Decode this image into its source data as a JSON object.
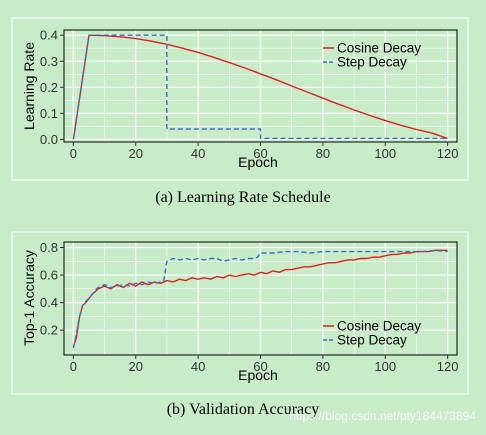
{
  "colors": {
    "cosine": "#e02020",
    "step": "#3a6fc4",
    "grid": "#ffffff",
    "panel": "#c8ecc8"
  },
  "chart_data": [
    {
      "type": "line",
      "caption": "(a) Learning Rate Schedule",
      "xlabel": "Epoch",
      "ylabel": "Learning Rate",
      "xlim": [
        -3,
        123
      ],
      "ylim": [
        -0.01,
        0.42
      ],
      "xticks": [
        0,
        20,
        40,
        60,
        80,
        100,
        120
      ],
      "xtick_labels": [
        "0",
        "20",
        "40",
        "60",
        "80",
        "100",
        "120"
      ],
      "yticks": [
        0.0,
        0.1,
        0.2,
        0.3,
        0.4
      ],
      "ytick_labels": [
        "0.0",
        "0.1",
        "0.2",
        "0.3",
        "0.4"
      ],
      "legend_position": "top-right",
      "grid": true,
      "series": [
        {
          "name": "Cosine Decay",
          "style": "solid",
          "x": [
            0,
            5,
            10,
            15,
            20,
            25,
            30,
            35,
            40,
            45,
            50,
            55,
            60,
            65,
            70,
            75,
            80,
            85,
            90,
            95,
            100,
            105,
            110,
            115,
            120
          ],
          "y": [
            0.0,
            0.4,
            0.398,
            0.394,
            0.387,
            0.377,
            0.365,
            0.35,
            0.334,
            0.315,
            0.295,
            0.274,
            0.252,
            0.229,
            0.205,
            0.182,
            0.158,
            0.135,
            0.113,
            0.092,
            0.072,
            0.054,
            0.038,
            0.024,
            0.004
          ]
        },
        {
          "name": "Step Decay",
          "style": "dashed",
          "x": [
            0,
            5,
            30,
            30,
            60,
            60,
            120
          ],
          "y": [
            0.0,
            0.4,
            0.4,
            0.04,
            0.04,
            0.004,
            0.004
          ]
        }
      ]
    },
    {
      "type": "line",
      "caption": "(b) Validation Accuracy",
      "xlabel": "Epoch",
      "ylabel": "Top-1 Accuracy",
      "xlim": [
        -3,
        123
      ],
      "ylim": [
        0.02,
        0.84
      ],
      "xticks": [
        0,
        20,
        40,
        60,
        80,
        100,
        120
      ],
      "xtick_labels": [
        "0",
        "20",
        "40",
        "60",
        "80",
        "100",
        "120"
      ],
      "yticks": [
        0.2,
        0.4,
        0.6,
        0.8
      ],
      "ytick_labels": [
        "0.2",
        "0.4",
        "0.6",
        "0.8"
      ],
      "legend_position": "bottom-right",
      "grid": true,
      "series": [
        {
          "name": "Cosine Decay",
          "style": "solid",
          "x": [
            0,
            1,
            2,
            3,
            4,
            5,
            6,
            7,
            8,
            9,
            10,
            12,
            14,
            16,
            18,
            20,
            22,
            24,
            26,
            28,
            30,
            32,
            34,
            36,
            38,
            40,
            42,
            44,
            46,
            48,
            50,
            52,
            54,
            56,
            58,
            60,
            62,
            64,
            66,
            68,
            70,
            72,
            74,
            76,
            78,
            80,
            82,
            84,
            86,
            88,
            90,
            92,
            94,
            96,
            98,
            100,
            102,
            104,
            106,
            108,
            110,
            112,
            114,
            116,
            118,
            120
          ],
          "y": [
            0.08,
            0.15,
            0.3,
            0.38,
            0.4,
            0.43,
            0.46,
            0.48,
            0.5,
            0.51,
            0.52,
            0.5,
            0.53,
            0.51,
            0.54,
            0.52,
            0.55,
            0.53,
            0.55,
            0.54,
            0.56,
            0.55,
            0.57,
            0.56,
            0.58,
            0.57,
            0.58,
            0.57,
            0.59,
            0.58,
            0.6,
            0.59,
            0.6,
            0.61,
            0.6,
            0.62,
            0.61,
            0.63,
            0.62,
            0.64,
            0.64,
            0.65,
            0.66,
            0.66,
            0.67,
            0.68,
            0.69,
            0.69,
            0.7,
            0.71,
            0.71,
            0.72,
            0.72,
            0.73,
            0.73,
            0.74,
            0.75,
            0.75,
            0.76,
            0.76,
            0.77,
            0.77,
            0.77,
            0.78,
            0.78,
            0.78
          ]
        },
        {
          "name": "Step Decay",
          "style": "dashed",
          "x": [
            0,
            1,
            2,
            3,
            4,
            5,
            6,
            7,
            8,
            9,
            10,
            12,
            14,
            16,
            18,
            20,
            22,
            24,
            26,
            28,
            29,
            30,
            32,
            34,
            36,
            38,
            40,
            42,
            44,
            46,
            48,
            50,
            52,
            54,
            56,
            58,
            59,
            60,
            64,
            68,
            72,
            76,
            80,
            84,
            88,
            92,
            96,
            100,
            104,
            108,
            112,
            116,
            120
          ],
          "y": [
            0.07,
            0.18,
            0.3,
            0.38,
            0.41,
            0.43,
            0.46,
            0.49,
            0.51,
            0.52,
            0.53,
            0.51,
            0.52,
            0.53,
            0.52,
            0.54,
            0.53,
            0.55,
            0.54,
            0.55,
            0.56,
            0.7,
            0.72,
            0.71,
            0.72,
            0.71,
            0.72,
            0.71,
            0.72,
            0.72,
            0.7,
            0.71,
            0.72,
            0.71,
            0.72,
            0.72,
            0.73,
            0.76,
            0.76,
            0.77,
            0.77,
            0.76,
            0.77,
            0.77,
            0.77,
            0.77,
            0.77,
            0.77,
            0.77,
            0.77,
            0.77,
            0.78,
            0.77
          ]
        }
      ]
    }
  ],
  "watermark": "https://blog.csdn.net/pty184473894"
}
